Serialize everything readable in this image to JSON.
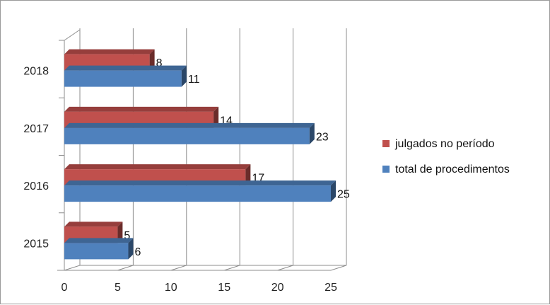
{
  "chart_data": {
    "type": "bar",
    "orientation": "horizontal",
    "three_d": true,
    "categories": [
      "2015",
      "2016",
      "2017",
      "2018"
    ],
    "series": [
      {
        "name": "julgados no período",
        "values": [
          5,
          17,
          14,
          8
        ],
        "color": "#c0504d"
      },
      {
        "name": "total de procedimentos",
        "values": [
          6,
          25,
          23,
          11
        ],
        "color": "#4f81bd"
      }
    ],
    "xlim": [
      0,
      25
    ],
    "xticks": [
      "0",
      "5",
      "10",
      "15",
      "20",
      "25"
    ],
    "grid": true,
    "legend_position": "right"
  }
}
